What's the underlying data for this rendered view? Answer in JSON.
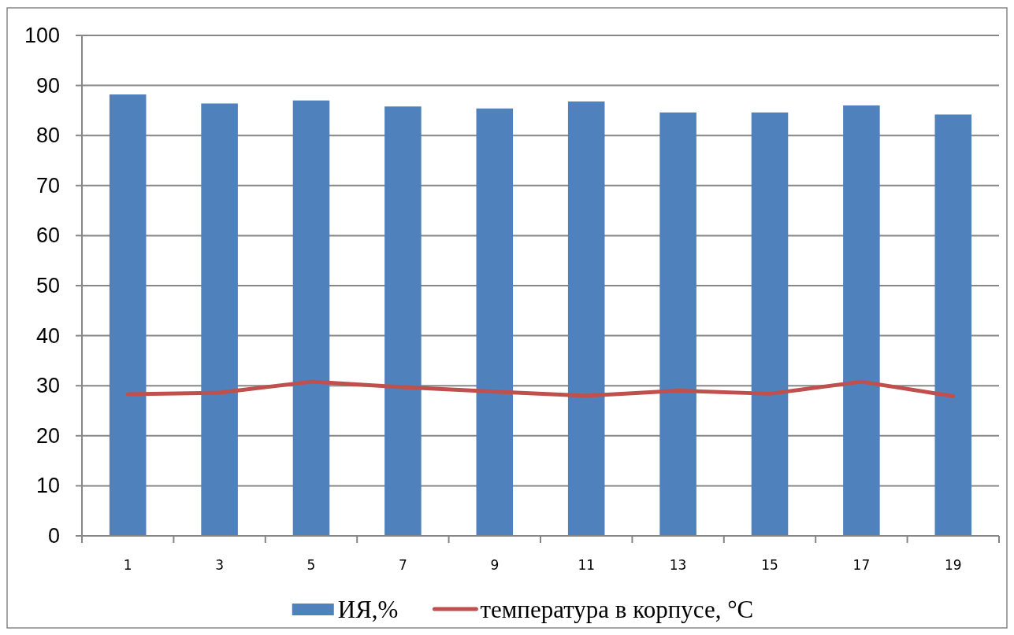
{
  "chart_data": {
    "type": "bar",
    "categories": [
      "1",
      "3",
      "5",
      "7",
      "9",
      "11",
      "13",
      "15",
      "17",
      "19"
    ],
    "series": [
      {
        "name": "ИЯ,%",
        "color": "#4f81bd",
        "values": [
          88.2,
          86.4,
          87.0,
          85.8,
          85.4,
          86.8,
          84.6,
          84.6,
          86.0,
          84.2
        ]
      },
      {
        "name": "температура в корпусе, °C",
        "type": "line",
        "color": "#c0504d",
        "values": [
          28.3,
          28.6,
          30.8,
          29.7,
          28.8,
          28.0,
          29.0,
          28.4,
          30.8,
          27.9
        ]
      }
    ],
    "ylim": [
      0,
      100
    ],
    "yticks": [
      0,
      10,
      20,
      30,
      40,
      50,
      60,
      70,
      80,
      90,
      100
    ],
    "grid": "y",
    "legend": "bottom"
  }
}
